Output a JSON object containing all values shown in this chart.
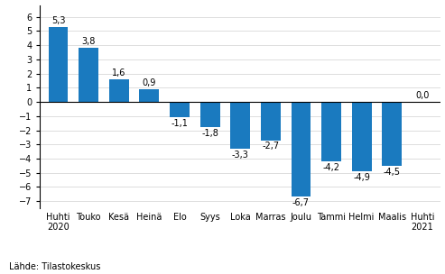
{
  "categories": [
    "Huhti\n2020",
    "Touko",
    "Kesä",
    "Heinä",
    "Elo",
    "Syys",
    "Loka",
    "Marras",
    "Joulu",
    "Tammi",
    "Helmi",
    "Maalis",
    "Huhti\n2021"
  ],
  "values": [
    5.3,
    3.8,
    1.6,
    0.9,
    -1.1,
    -1.8,
    -3.3,
    -2.7,
    -6.7,
    -4.2,
    -4.9,
    -4.5,
    0.0
  ],
  "bar_color": "#1a7abf",
  "ylim": [
    -7.5,
    6.8
  ],
  "yticks": [
    -7,
    -6,
    -5,
    -4,
    -3,
    -2,
    -1,
    0,
    1,
    2,
    3,
    4,
    5,
    6
  ],
  "source_text": "Lähde: Tilastokeskus",
  "background_color": "#ffffff",
  "label_fontsize": 7.0,
  "tick_fontsize": 7.0,
  "source_fontsize": 7.0
}
